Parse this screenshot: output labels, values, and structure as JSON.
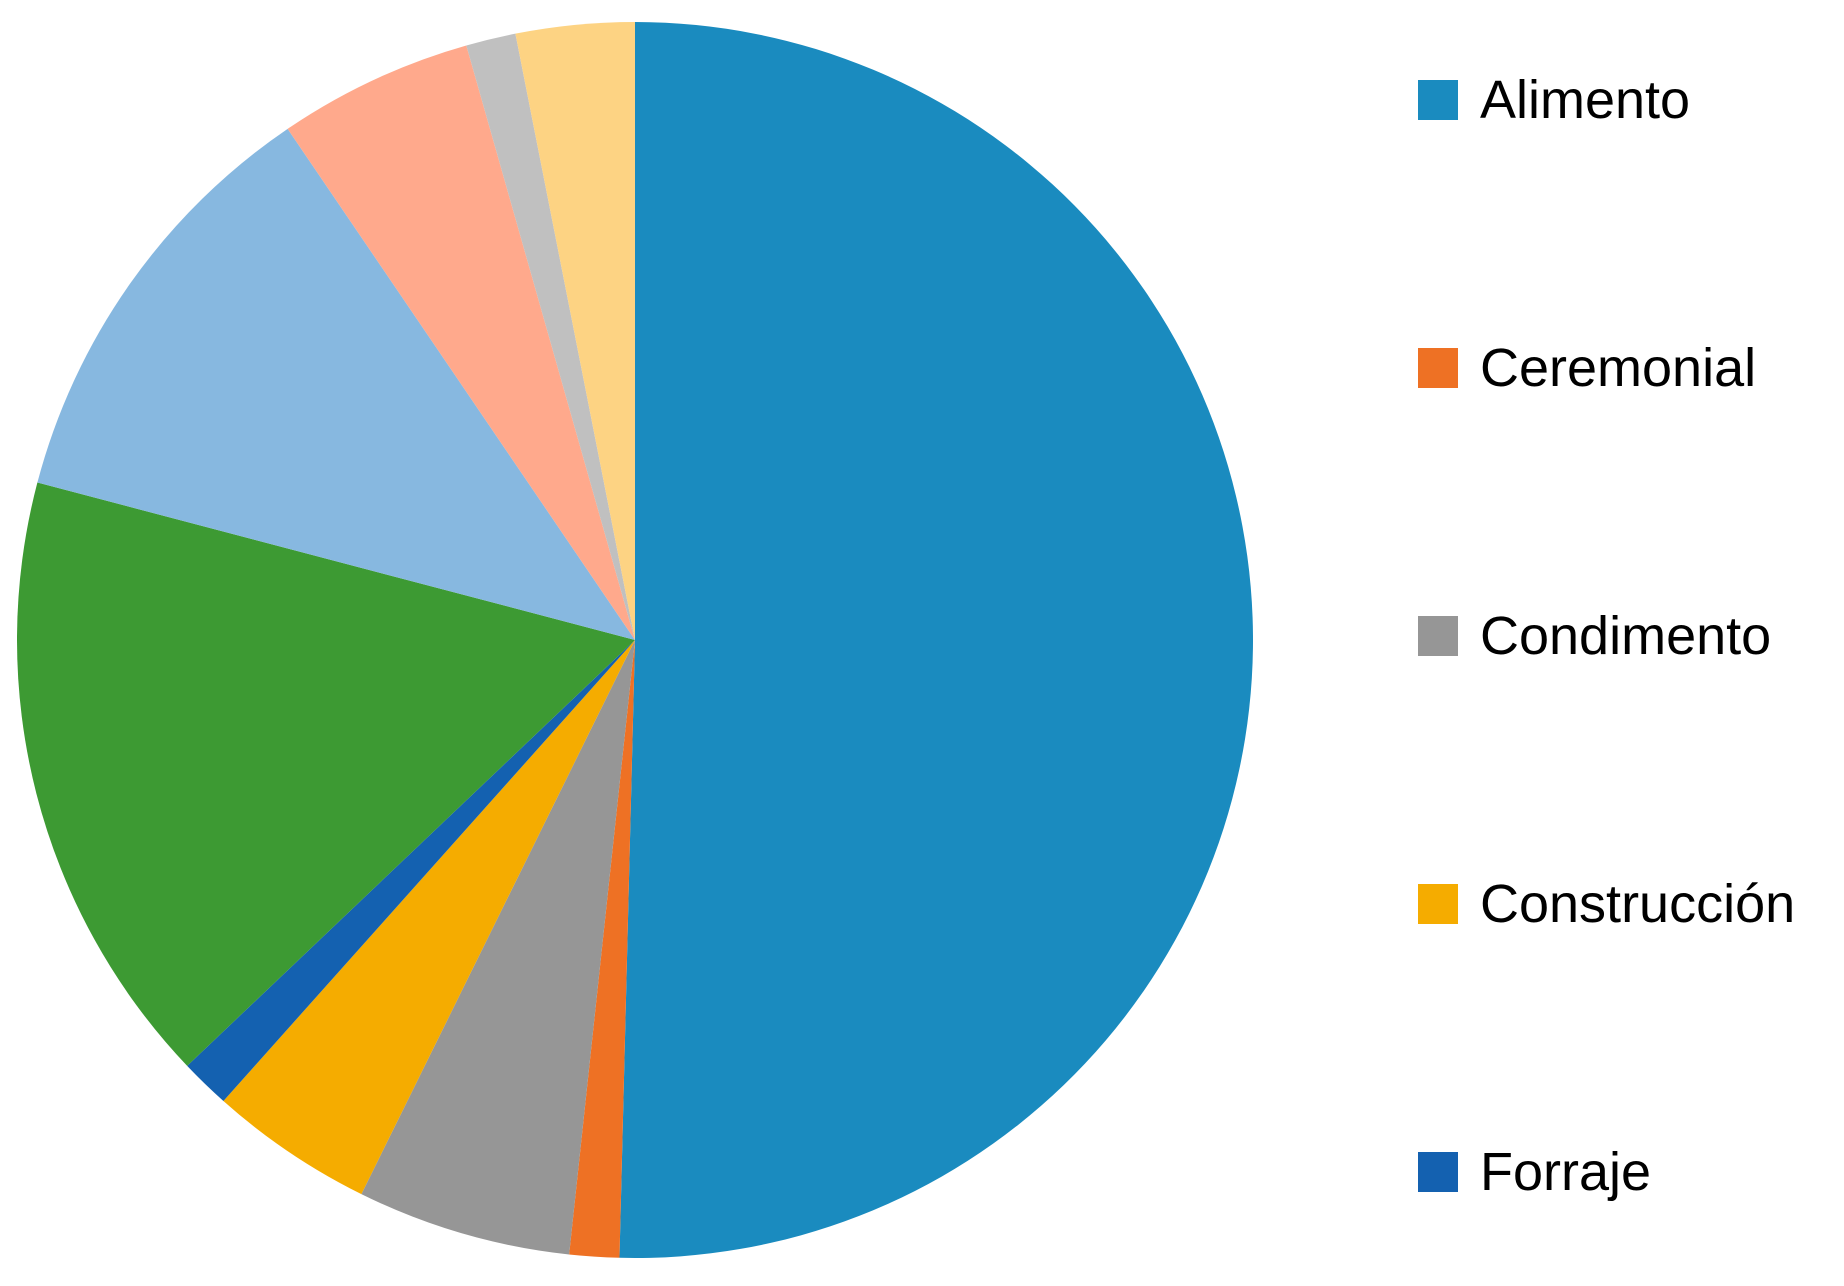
{
  "chart_data": {
    "type": "pie",
    "title": "",
    "start_direction": "top",
    "direction": "clockwise",
    "slices": [
      {
        "label": "Alimento",
        "value": 50.4,
        "color": "#1A8BBF"
      },
      {
        "label": "Ceremonial",
        "value": 1.3,
        "color": "#EE7124"
      },
      {
        "label": "Condimento",
        "value": 5.6,
        "color": "#969696"
      },
      {
        "label": "Construcción",
        "value": 4.3,
        "color": "#F5AC00"
      },
      {
        "label": "Forraje",
        "value": 1.3,
        "color": "#1461B0"
      },
      {
        "label": "",
        "value": 16.2,
        "color": "#3D9A33"
      },
      {
        "label": "",
        "value": 11.4,
        "color": "#87B8E0"
      },
      {
        "label": "",
        "value": 5.1,
        "color": "#FFA98C"
      },
      {
        "label": "",
        "value": 1.3,
        "color": "#C0C0C0"
      },
      {
        "label": "",
        "value": 3.1,
        "color": "#FDD383"
      }
    ],
    "legend": {
      "placement": "right",
      "entries": [
        "Alimento",
        "Ceremonial",
        "Condimento",
        "Construcción",
        "Forraje"
      ]
    }
  }
}
